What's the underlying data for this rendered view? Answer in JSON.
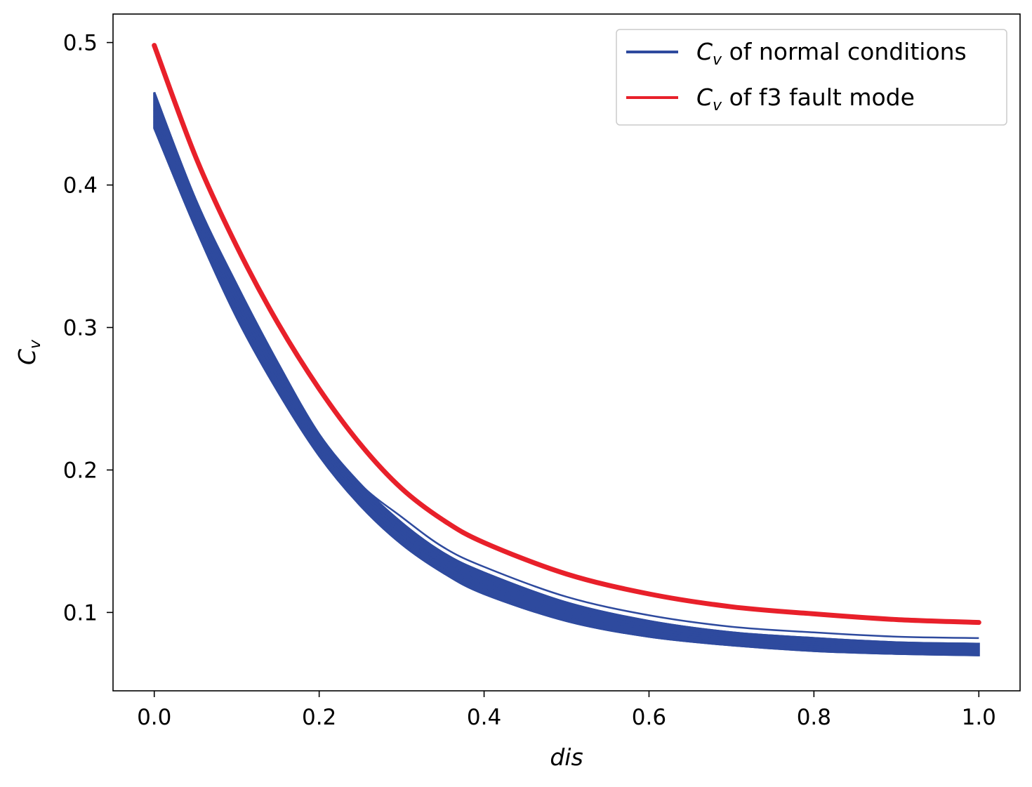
{
  "chart_data": {
    "type": "line",
    "title": "",
    "xlabel": "dis",
    "ylabel_symbol": "C",
    "ylabel_subscript": "v",
    "xlim": [
      -0.05,
      1.05
    ],
    "ylim": [
      0.045,
      0.52
    ],
    "xticks": [
      0.0,
      0.2,
      0.4,
      0.6,
      0.8,
      1.0
    ],
    "xtick_labels": [
      "0.0",
      "0.2",
      "0.4",
      "0.6",
      "0.8",
      "1.0"
    ],
    "yticks": [
      0.1,
      0.2,
      0.3,
      0.4,
      0.5
    ],
    "ytick_labels": [
      "0.1",
      "0.2",
      "0.3",
      "0.4",
      "0.5"
    ],
    "legend_position": "top-right",
    "series": [
      {
        "name": "normal",
        "legend_symbol": "C",
        "legend_subscript": "v",
        "legend_text": " of normal conditions",
        "color": "#2e4a9e",
        "band": true,
        "x": [
          0.0,
          0.05,
          0.1,
          0.15,
          0.2,
          0.25,
          0.3,
          0.35,
          0.4,
          0.5,
          0.6,
          0.7,
          0.8,
          0.9,
          1.0
        ],
        "upper": [
          0.465,
          0.39,
          0.33,
          0.275,
          0.225,
          0.19,
          0.163,
          0.142,
          0.128,
          0.107,
          0.094,
          0.086,
          0.082,
          0.079,
          0.078
        ],
        "lower": [
          0.44,
          0.37,
          0.307,
          0.255,
          0.21,
          0.175,
          0.148,
          0.128,
          0.113,
          0.094,
          0.083,
          0.077,
          0.073,
          0.071,
          0.07
        ]
      },
      {
        "name": "f3",
        "legend_symbol": "C",
        "legend_subscript": "v",
        "legend_text": " of f3 fault mode",
        "color": "#e8202a",
        "band": false,
        "x": [
          0.0,
          0.05,
          0.1,
          0.15,
          0.2,
          0.25,
          0.3,
          0.35,
          0.4,
          0.5,
          0.6,
          0.7,
          0.8,
          0.9,
          1.0
        ],
        "values": [
          0.498,
          0.42,
          0.357,
          0.303,
          0.257,
          0.218,
          0.187,
          0.165,
          0.149,
          0.127,
          0.113,
          0.104,
          0.099,
          0.095,
          0.093
        ]
      }
    ]
  }
}
